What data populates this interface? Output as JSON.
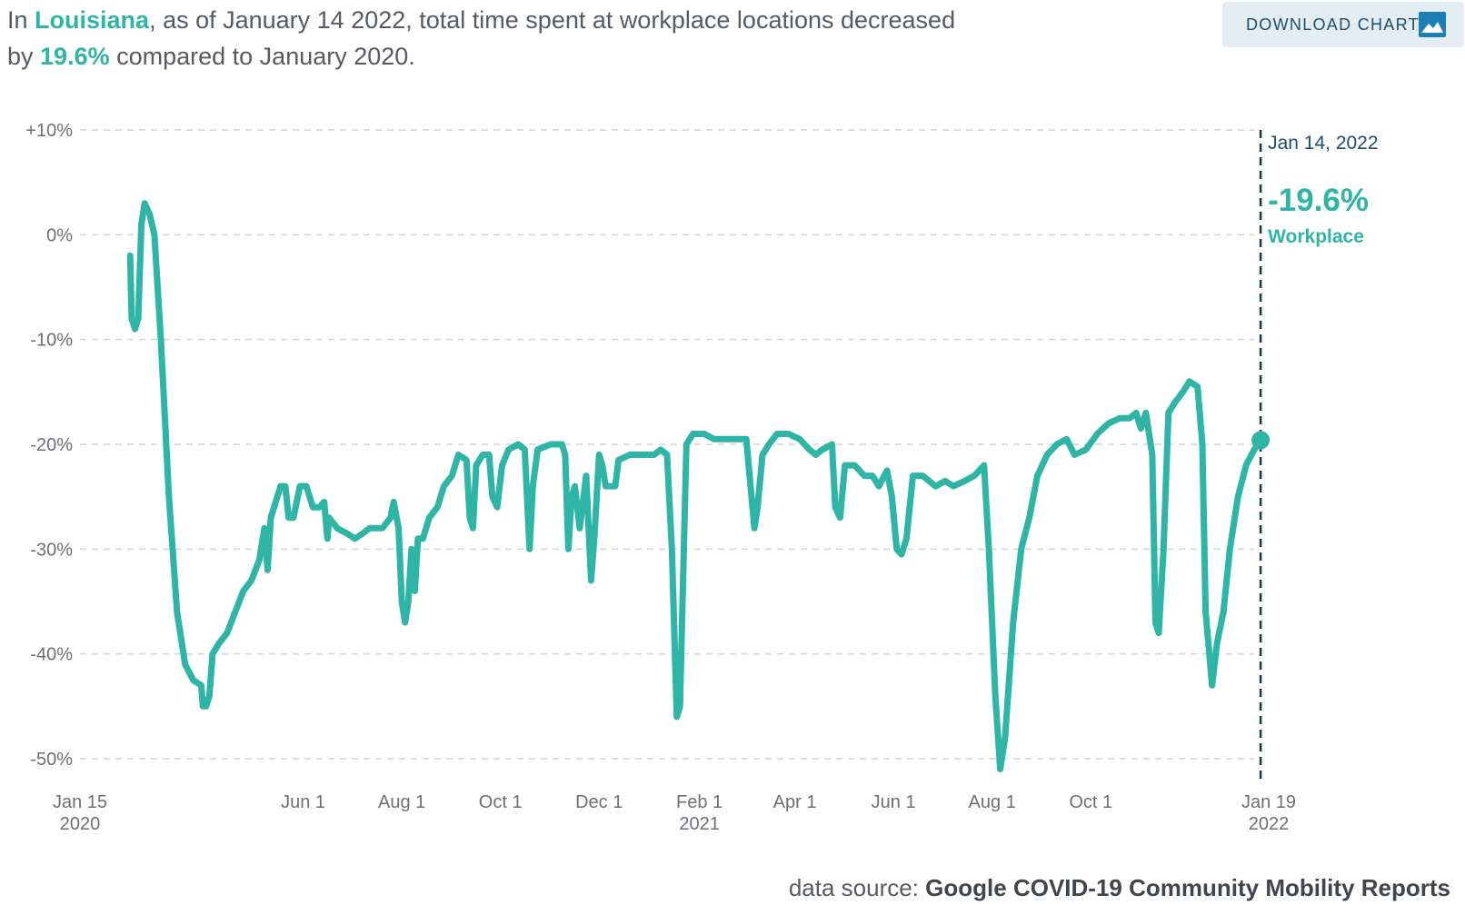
{
  "headline": {
    "prefix": "In ",
    "state": "Louisiana",
    "middle": ", as of January 14 2022, total time spent at workplace locations decreased by ",
    "change": "19.6%",
    "suffix": " compared to January 2020."
  },
  "download": {
    "label": "DOWNLOAD CHART",
    "icon": "image-icon"
  },
  "source": {
    "label": "data source:",
    "name": "Google COVID-19 Community Mobility Reports"
  },
  "colors": {
    "line": "#2fb5a5",
    "grid": "#d4d4d4",
    "marker_line": "#17384f",
    "tick_text": "#6b7075"
  },
  "chart_data": {
    "type": "line",
    "title": "",
    "xlabel": "",
    "ylabel": "",
    "ylim": [
      -50,
      10
    ],
    "xlim": [
      "2020-01-15",
      "2022-01-19"
    ],
    "grid": true,
    "y_ticks": [
      {
        "value": 10,
        "label": "+10%"
      },
      {
        "value": 0,
        "label": "0%"
      },
      {
        "value": -10,
        "label": "-10%"
      },
      {
        "value": -20,
        "label": "-20%"
      },
      {
        "value": -30,
        "label": "-30%"
      },
      {
        "value": -40,
        "label": "-40%"
      },
      {
        "value": -50,
        "label": "-50%"
      }
    ],
    "x_ticks": [
      {
        "date": "2020-01-15",
        "label": "Jan 15",
        "sublabel": "2020"
      },
      {
        "date": "2020-06-01",
        "label": "Jun 1",
        "sublabel": ""
      },
      {
        "date": "2020-08-01",
        "label": "Aug 1",
        "sublabel": ""
      },
      {
        "date": "2020-10-01",
        "label": "Oct 1",
        "sublabel": ""
      },
      {
        "date": "2020-12-01",
        "label": "Dec 1",
        "sublabel": ""
      },
      {
        "date": "2021-02-01",
        "label": "Feb 1",
        "sublabel": "2021"
      },
      {
        "date": "2021-04-01",
        "label": "Apr 1",
        "sublabel": ""
      },
      {
        "date": "2021-06-01",
        "label": "Jun 1",
        "sublabel": ""
      },
      {
        "date": "2021-08-01",
        "label": "Aug 1",
        "sublabel": ""
      },
      {
        "date": "2021-10-01",
        "label": "Oct 1",
        "sublabel": ""
      },
      {
        "date": "2022-01-19",
        "label": "Jan 19",
        "sublabel": "2022"
      }
    ],
    "marker": {
      "date": "2022-01-14",
      "date_label": "Jan 14, 2022",
      "value_label": "-19.6%",
      "series_label": "Workplace",
      "value": -19.6
    },
    "series": [
      {
        "name": "Workplace",
        "points": [
          [
            "2020-02-15",
            -2
          ],
          [
            "2020-02-16",
            -8
          ],
          [
            "2020-02-18",
            -9
          ],
          [
            "2020-02-20",
            -8
          ],
          [
            "2020-02-22",
            1
          ],
          [
            "2020-02-24",
            3
          ],
          [
            "2020-02-27",
            2
          ],
          [
            "2020-03-01",
            0
          ],
          [
            "2020-03-05",
            -10
          ],
          [
            "2020-03-10",
            -25
          ],
          [
            "2020-03-15",
            -36
          ],
          [
            "2020-03-20",
            -41
          ],
          [
            "2020-03-25",
            -42.5
          ],
          [
            "2020-03-30",
            -43
          ],
          [
            "2020-03-31",
            -45
          ],
          [
            "2020-04-02",
            -45
          ],
          [
            "2020-04-04",
            -44
          ],
          [
            "2020-04-06",
            -40
          ],
          [
            "2020-04-10",
            -39
          ],
          [
            "2020-04-15",
            -38
          ],
          [
            "2020-04-20",
            -36
          ],
          [
            "2020-04-25",
            -34
          ],
          [
            "2020-04-30",
            -33
          ],
          [
            "2020-05-05",
            -31
          ],
          [
            "2020-05-08",
            -28
          ],
          [
            "2020-05-10",
            -32
          ],
          [
            "2020-05-12",
            -27
          ],
          [
            "2020-05-18",
            -24
          ],
          [
            "2020-05-21",
            -24
          ],
          [
            "2020-05-23",
            -27
          ],
          [
            "2020-05-26",
            -27
          ],
          [
            "2020-05-30",
            -24
          ],
          [
            "2020-06-03",
            -24
          ],
          [
            "2020-06-07",
            -26
          ],
          [
            "2020-06-11",
            -26
          ],
          [
            "2020-06-14",
            -25.5
          ],
          [
            "2020-06-16",
            -29
          ],
          [
            "2020-06-17",
            -27
          ],
          [
            "2020-06-22",
            -28
          ],
          [
            "2020-06-28",
            -28.5
          ],
          [
            "2020-07-03",
            -29
          ],
          [
            "2020-07-08",
            -28.5
          ],
          [
            "2020-07-12",
            -28
          ],
          [
            "2020-07-20",
            -28
          ],
          [
            "2020-07-25",
            -27
          ],
          [
            "2020-07-27",
            -25.5
          ],
          [
            "2020-07-30",
            -28
          ],
          [
            "2020-08-01",
            -35
          ],
          [
            "2020-08-03",
            -37
          ],
          [
            "2020-08-05",
            -35
          ],
          [
            "2020-08-07",
            -30
          ],
          [
            "2020-08-09",
            -34
          ],
          [
            "2020-08-11",
            -29
          ],
          [
            "2020-08-14",
            -29
          ],
          [
            "2020-08-18",
            -27
          ],
          [
            "2020-08-23",
            -26
          ],
          [
            "2020-08-27",
            -24
          ],
          [
            "2020-09-01",
            -23
          ],
          [
            "2020-09-05",
            -21
          ],
          [
            "2020-09-10",
            -21.5
          ],
          [
            "2020-09-12",
            -27
          ],
          [
            "2020-09-14",
            -28
          ],
          [
            "2020-09-16",
            -22
          ],
          [
            "2020-09-20",
            -21
          ],
          [
            "2020-09-24",
            -21
          ],
          [
            "2020-09-26",
            -25
          ],
          [
            "2020-09-29",
            -26
          ],
          [
            "2020-10-02",
            -22
          ],
          [
            "2020-10-06",
            -20.5
          ],
          [
            "2020-10-12",
            -20
          ],
          [
            "2020-10-16",
            -20.5
          ],
          [
            "2020-10-19",
            -30
          ],
          [
            "2020-10-21",
            -24
          ],
          [
            "2020-10-24",
            -20.5
          ],
          [
            "2020-11-01",
            -20
          ],
          [
            "2020-11-08",
            -20
          ],
          [
            "2020-11-10",
            -21
          ],
          [
            "2020-11-12",
            -30
          ],
          [
            "2020-11-14",
            -25
          ],
          [
            "2020-11-16",
            -24
          ],
          [
            "2020-11-19",
            -28
          ],
          [
            "2020-11-23",
            -23
          ],
          [
            "2020-11-26",
            -33
          ],
          [
            "2020-11-28",
            -29
          ],
          [
            "2020-12-01",
            -21
          ],
          [
            "2020-12-03",
            -22
          ],
          [
            "2020-12-05",
            -24
          ],
          [
            "2020-12-11",
            -24
          ],
          [
            "2020-12-13",
            -21.5
          ],
          [
            "2020-12-20",
            -21
          ],
          [
            "2020-12-28",
            -21
          ],
          [
            "2021-01-04",
            -21
          ],
          [
            "2021-01-08",
            -20.5
          ],
          [
            "2021-01-12",
            -21
          ],
          [
            "2021-01-15",
            -30
          ],
          [
            "2021-01-18",
            -46
          ],
          [
            "2021-01-20",
            -45
          ],
          [
            "2021-01-24",
            -20
          ],
          [
            "2021-01-28",
            -19
          ],
          [
            "2021-02-04",
            -19
          ],
          [
            "2021-02-10",
            -19.5
          ],
          [
            "2021-02-15",
            -19.5
          ],
          [
            "2021-02-20",
            -19.5
          ],
          [
            "2021-02-27",
            -19.5
          ],
          [
            "2021-03-02",
            -19.5
          ],
          [
            "2021-03-04",
            -23
          ],
          [
            "2021-03-07",
            -28
          ],
          [
            "2021-03-09",
            -26
          ],
          [
            "2021-03-12",
            -21
          ],
          [
            "2021-03-16",
            -20
          ],
          [
            "2021-03-21",
            -19
          ],
          [
            "2021-03-28",
            -19
          ],
          [
            "2021-04-04",
            -19.5
          ],
          [
            "2021-04-10",
            -20.5
          ],
          [
            "2021-04-14",
            -21
          ],
          [
            "2021-04-18",
            -20.5
          ],
          [
            "2021-04-24",
            -20
          ],
          [
            "2021-04-26",
            -26
          ],
          [
            "2021-04-29",
            -27
          ],
          [
            "2021-05-02",
            -22
          ],
          [
            "2021-05-08",
            -22
          ],
          [
            "2021-05-14",
            -23
          ],
          [
            "2021-05-19",
            -23
          ],
          [
            "2021-05-23",
            -24
          ],
          [
            "2021-05-28",
            -22.5
          ],
          [
            "2021-05-31",
            -25
          ],
          [
            "2021-06-03",
            -30
          ],
          [
            "2021-06-06",
            -30.5
          ],
          [
            "2021-06-09",
            -29
          ],
          [
            "2021-06-13",
            -23
          ],
          [
            "2021-06-19",
            -23
          ],
          [
            "2021-06-27",
            -24
          ],
          [
            "2021-07-03",
            -23.5
          ],
          [
            "2021-07-08",
            -24
          ],
          [
            "2021-07-15",
            -23.5
          ],
          [
            "2021-07-21",
            -23
          ],
          [
            "2021-07-27",
            -22
          ],
          [
            "2021-07-30",
            -30
          ],
          [
            "2021-08-03",
            -44
          ],
          [
            "2021-08-06",
            -51
          ],
          [
            "2021-08-09",
            -48
          ],
          [
            "2021-08-14",
            -37
          ],
          [
            "2021-08-19",
            -30
          ],
          [
            "2021-08-24",
            -27
          ],
          [
            "2021-08-29",
            -23
          ],
          [
            "2021-09-04",
            -21
          ],
          [
            "2021-09-10",
            -20
          ],
          [
            "2021-09-16",
            -19.5
          ],
          [
            "2021-09-21",
            -21
          ],
          [
            "2021-09-28",
            -20.5
          ],
          [
            "2021-10-05",
            -19
          ],
          [
            "2021-10-12",
            -18
          ],
          [
            "2021-10-19",
            -17.5
          ],
          [
            "2021-10-25",
            -17.5
          ],
          [
            "2021-10-29",
            -17
          ],
          [
            "2021-11-01",
            -18.5
          ],
          [
            "2021-11-04",
            -17
          ],
          [
            "2021-11-08",
            -21
          ],
          [
            "2021-11-10",
            -37
          ],
          [
            "2021-11-12",
            -38
          ],
          [
            "2021-11-15",
            -30
          ],
          [
            "2021-11-18",
            -17
          ],
          [
            "2021-11-22",
            -16
          ],
          [
            "2021-11-27",
            -15
          ],
          [
            "2021-12-01",
            -14
          ],
          [
            "2021-12-06",
            -14.5
          ],
          [
            "2021-12-09",
            -20
          ],
          [
            "2021-12-11",
            -36
          ],
          [
            "2021-12-15",
            -43
          ],
          [
            "2021-12-18",
            -39
          ],
          [
            "2021-12-22",
            -36
          ],
          [
            "2021-12-26",
            -30
          ],
          [
            "2021-12-31",
            -25
          ],
          [
            "2022-01-05",
            -22
          ],
          [
            "2022-01-10",
            -20.5
          ],
          [
            "2022-01-14",
            -19.6
          ]
        ]
      }
    ]
  }
}
